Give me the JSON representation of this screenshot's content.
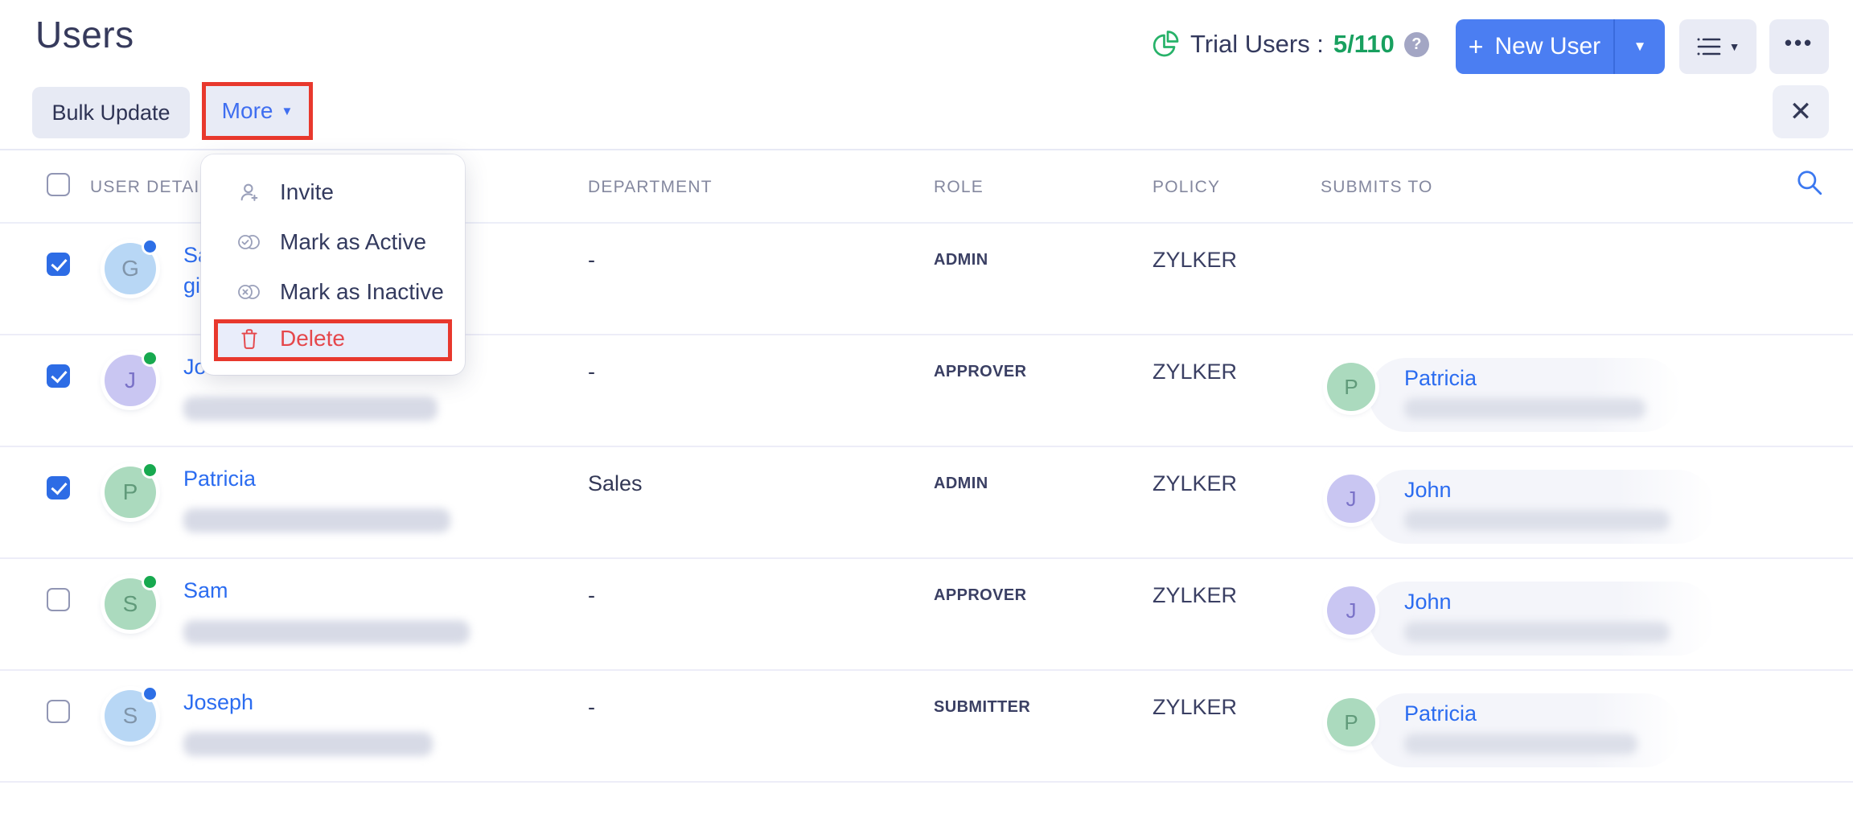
{
  "page": {
    "title": "Users"
  },
  "header": {
    "trial_label": "Trial Users :",
    "trial_count": "5/110",
    "help_badge": "?",
    "new_user_plus": "+",
    "new_user_label": "New User",
    "dots_label": "•••",
    "close_glyph": "✕"
  },
  "toolbar": {
    "bulk_update_label": "Bulk Update",
    "more_label": "More"
  },
  "menu": {
    "items": [
      {
        "label": "Invite",
        "icon": "person-plus-icon"
      },
      {
        "label": "Mark as Active",
        "icon": "toggle-check-icon"
      },
      {
        "label": "Mark as Inactive",
        "icon": "toggle-x-icon"
      },
      {
        "label": "Delete",
        "icon": "trash-icon",
        "danger": true
      }
    ]
  },
  "table": {
    "columns": [
      "USER DETAILS",
      "DEPARTMENT",
      "ROLE",
      "POLICY",
      "SUBMITS TO"
    ],
    "rows": [
      {
        "checked": true,
        "avatar_letter": "G",
        "avatar_bg": "#b8d7f5",
        "avatar_fg": "#8095aa",
        "status_color": "#2d6fe6",
        "name": "Sa",
        "name2": "gi",
        "email_blur_width": 0,
        "department": "-",
        "role": "ADMIN",
        "policy": "ZYLKER",
        "submits_to": null
      },
      {
        "checked": true,
        "avatar_letter": "J",
        "avatar_bg": "#c9c6f2",
        "avatar_fg": "#7a72c8",
        "status_color": "#17a94f",
        "name": "Jo",
        "name2": null,
        "email_blur_width": 316,
        "department": "-",
        "role": "APPROVER",
        "policy": "ZYLKER",
        "submits_to": {
          "letter": "P",
          "bg": "#abdabe",
          "fg": "#609a7a",
          "name": "Patricia",
          "pill_width": 388,
          "blur_width": 300
        }
      },
      {
        "checked": true,
        "avatar_letter": "P",
        "avatar_bg": "#abdabe",
        "avatar_fg": "#609a7a",
        "status_color": "#17a94f",
        "name": "Patricia",
        "name2": null,
        "email_blur_width": 332,
        "department": "Sales",
        "role": "ADMIN",
        "policy": "ZYLKER",
        "submits_to": {
          "letter": "J",
          "bg": "#c9c6f2",
          "fg": "#7a72c8",
          "name": "John",
          "pill_width": 430,
          "blur_width": 330
        }
      },
      {
        "checked": false,
        "avatar_letter": "S",
        "avatar_bg": "#abdabe",
        "avatar_fg": "#609a7a",
        "status_color": "#17a94f",
        "name": "Sam",
        "name2": null,
        "email_blur_width": 356,
        "department": "-",
        "role": "APPROVER",
        "policy": "ZYLKER",
        "submits_to": {
          "letter": "J",
          "bg": "#c9c6f2",
          "fg": "#7a72c8",
          "name": "John",
          "pill_width": 430,
          "blur_width": 330
        }
      },
      {
        "checked": false,
        "avatar_letter": "S",
        "avatar_bg": "#b8d7f5",
        "avatar_fg": "#8095aa",
        "status_color": "#2d6fe6",
        "name": "Joseph",
        "name2": null,
        "email_blur_width": 310,
        "department": "-",
        "role": "SUBMITTER",
        "policy": "ZYLKER",
        "submits_to": {
          "letter": "P",
          "bg": "#abdabe",
          "fg": "#609a7a",
          "name": "Patricia",
          "pill_width": 388,
          "blur_width": 290
        }
      }
    ]
  },
  "colors": {
    "primary_blue": "#4b7ef2",
    "link_blue": "#2b6cf0",
    "count_green": "#18a05f",
    "annotation_red": "#e8382d",
    "delete_red": "#e5474b"
  }
}
